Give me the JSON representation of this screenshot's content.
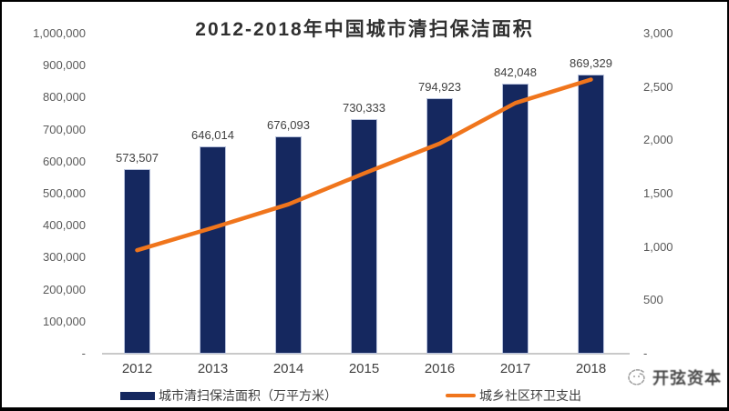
{
  "title": "2012-2018年中国城市清扫保洁面积",
  "watermark": {
    "text": "开弦资本",
    "logo": "scribble-circle"
  },
  "colors": {
    "bar": "#15285f",
    "line": "#f0751c",
    "axis_text": "#595959",
    "baseline": "#c9c9c9",
    "title_text": "#303030"
  },
  "chart_data": {
    "type": "bar",
    "subtype": "bar-and-line-combo",
    "title": "2012-2018年中国城市清扫保洁面积",
    "categories": [
      "2012",
      "2013",
      "2014",
      "2015",
      "2016",
      "2017",
      "2018"
    ],
    "series": [
      {
        "name": "城市清扫保洁面积（万平方米）",
        "type": "bar",
        "axis": "left",
        "color": "#15285f",
        "values": [
          573507,
          646014,
          676093,
          730333,
          794923,
          842048,
          869329
        ],
        "value_labels": [
          "573,507",
          "646,014",
          "676,093",
          "730,333",
          "794,923",
          "842,048",
          "869,329"
        ]
      },
      {
        "name": "城乡社区环卫支出",
        "type": "line",
        "axis": "right",
        "color": "#f0751c",
        "values": [
          970,
          1180,
          1400,
          1690,
          1970,
          2350,
          2570
        ]
      }
    ],
    "left_axis": {
      "min": 0,
      "max": 1000000,
      "step": 100000,
      "tick_labels_top_to_bottom": [
        "1,000,000",
        "900,000",
        "800,000",
        "700,000",
        "600,000",
        "500,000",
        "400,000",
        "300,000",
        "200,000",
        "100,000",
        "-"
      ]
    },
    "right_axis": {
      "min": 0,
      "max": 3000,
      "step": 500,
      "tick_labels_top_to_bottom": [
        "3,000",
        "2,500",
        "2,000",
        "1,500",
        "1,000",
        "500",
        "-"
      ]
    },
    "gridlines": false,
    "legend_position": "bottom"
  }
}
